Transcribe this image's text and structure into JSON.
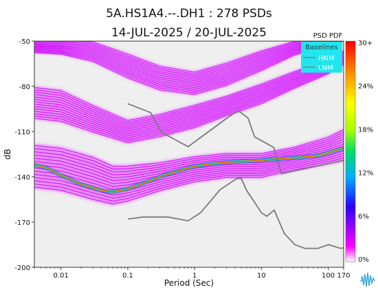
{
  "chart_data": {
    "type": "heatmap",
    "title_line1": "5A.HS1A4.--.DH1 : 278 PSDs",
    "title_line2": "14-JUL-2025 / 20-JUL-2025",
    "xlabel": "Period (Sec)",
    "ylabel": "dB",
    "x_scale": "log",
    "xlim": [
      0.004,
      170
    ],
    "ylim": [
      -200,
      -50
    ],
    "x_ticks": [
      {
        "value": 0.01,
        "label": "0.01"
      },
      {
        "value": 0.1,
        "label": "0.1"
      },
      {
        "value": 1,
        "label": "1"
      },
      {
        "value": 10,
        "label": "10"
      },
      {
        "value": 100,
        "label": "100"
      },
      {
        "value": 170,
        "label": "170"
      }
    ],
    "y_ticks": [
      {
        "value": -50,
        "label": "-50"
      },
      {
        "value": -80,
        "label": "-80"
      },
      {
        "value": -110,
        "label": "-110"
      },
      {
        "value": -140,
        "label": "-140"
      },
      {
        "value": -170,
        "label": "-170"
      },
      {
        "value": -200,
        "label": "-200"
      }
    ],
    "plot_background": "#efefef",
    "colorbar": {
      "title": "PSD PDF",
      "labels": [
        "30+",
        "24%",
        "18%",
        "12%",
        "6%",
        "0%"
      ],
      "stops": [
        "#ffffff",
        "#ff00ff",
        "#2a00ff",
        "#00aaff",
        "#00dd66",
        "#aaff00",
        "#ffff00",
        "#ff8800",
        "#ff0000"
      ]
    },
    "legend": {
      "title": "Baselines",
      "placement": "top-right",
      "background": "#22e6ee",
      "items": [
        {
          "label": "HNM",
          "color": "#808080"
        },
        {
          "label": "LNM",
          "color": "#808080"
        }
      ]
    },
    "mode_curve": {
      "x": [
        0.004,
        0.006,
        0.01,
        0.02,
        0.04,
        0.06,
        0.1,
        0.2,
        0.4,
        0.7,
        1,
        2,
        4,
        7,
        10,
        20,
        40,
        70,
        100,
        170
      ],
      "y": [
        -132,
        -134,
        -139,
        -145,
        -149,
        -150,
        -148,
        -143,
        -138,
        -135,
        -133,
        -131,
        -130,
        -129.5,
        -129,
        -128,
        -127,
        -126,
        -124,
        -121
      ]
    },
    "hnm": {
      "x": [
        0.1,
        0.22,
        0.32,
        0.8,
        3.8,
        4.6,
        6.3,
        7.9,
        15.4,
        20,
        354.8
      ],
      "y": [
        -91.5,
        -97.4,
        -110.5,
        -120,
        -98,
        -96.5,
        -101,
        -113.5,
        -120.6,
        -138,
        -126
      ]
    },
    "lnm": {
      "x": [
        0.1,
        0.17,
        0.4,
        0.8,
        1.24,
        2.4,
        4.3,
        5,
        6,
        10,
        12,
        15.6,
        21.9,
        31.6,
        45,
        70,
        101,
        154,
        328,
        600
      ],
      "y": [
        -168,
        -166.7,
        -166.7,
        -169.2,
        -163.7,
        -148.6,
        -141.1,
        -141.1,
        -149,
        -163.8,
        -166.2,
        -162.1,
        -177.5,
        -185,
        -187.5,
        -187.5,
        -185,
        -187.5,
        -184.4,
        -151.9
      ]
    },
    "psd_bands": [
      {
        "x": [
          0.004,
          0.01,
          0.03,
          0.1,
          0.3,
          1,
          3,
          10,
          30,
          100,
          170
        ],
        "y_low": [
          -58,
          -59,
          -64,
          -75,
          -83,
          -86,
          -80,
          -70,
          -60,
          -52,
          -50
        ],
        "y_high": [
          -50,
          -50,
          -50,
          -58,
          -66,
          -70,
          -64,
          -56,
          -50,
          -50,
          -50
        ]
      },
      {
        "x": [
          0.004,
          0.01,
          0.03,
          0.1,
          0.3,
          1,
          3,
          10,
          30,
          100,
          170
        ],
        "y_low": [
          -102,
          -104,
          -111,
          -118,
          -114,
          -108,
          -100,
          -92,
          -82,
          -72,
          -66
        ],
        "y_high": [
          -80,
          -82,
          -92,
          -102,
          -98,
          -92,
          -86,
          -78,
          -70,
          -62,
          -56
        ]
      },
      {
        "x": [
          0.004,
          0.01,
          0.03,
          0.06,
          0.1,
          0.3,
          1,
          3,
          10,
          30,
          100,
          170
        ],
        "y_low": [
          -148,
          -150,
          -156,
          -159,
          -157,
          -150,
          -144,
          -141,
          -141,
          -136,
          -132,
          -130
        ],
        "y_high": [
          -118,
          -120,
          -126,
          -132,
          -132,
          -130,
          -126,
          -124,
          -124,
          -120,
          -113,
          -108
        ]
      }
    ]
  }
}
